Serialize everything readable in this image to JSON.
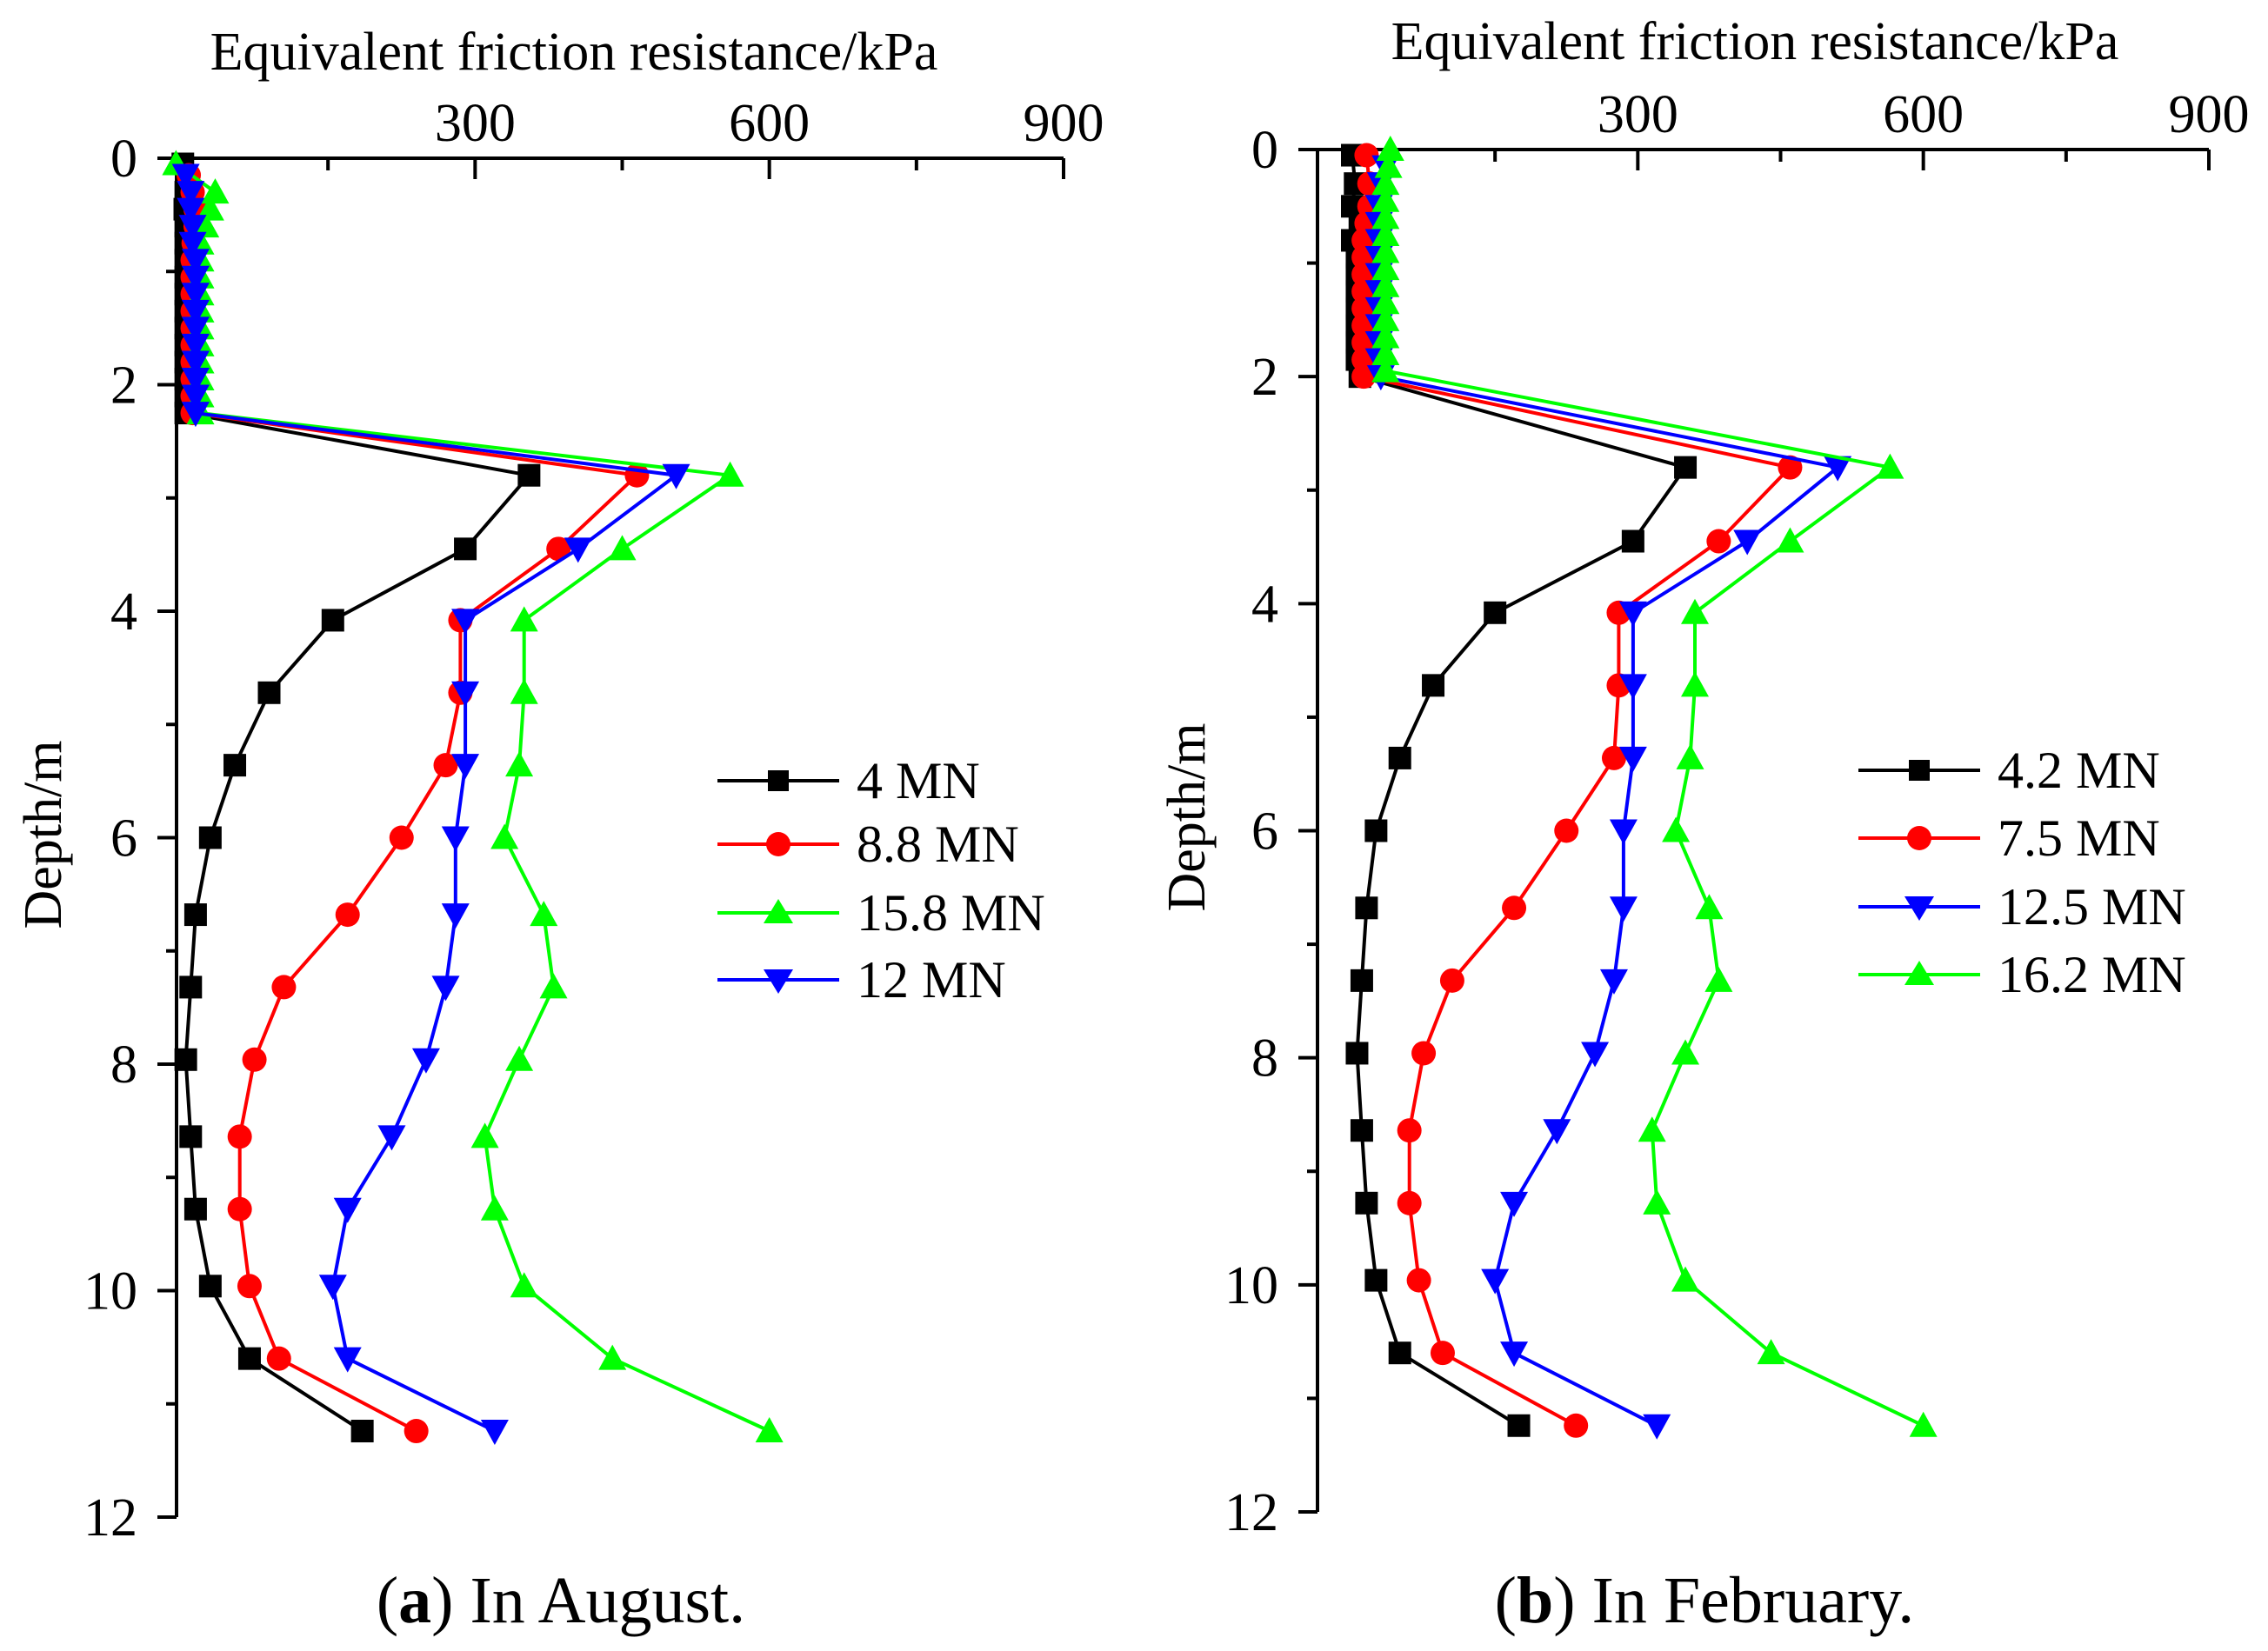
{
  "chart_data": [
    {
      "type": "line",
      "panel_id": "a",
      "caption_letter": "a",
      "caption_text": "In August.",
      "xlabel": "Equivalent friction resistance/kPa",
      "ylabel": "Depth/m",
      "xlim": [
        0,
        900
      ],
      "ylim": [
        0,
        12
      ],
      "xticks": [
        300,
        600,
        900
      ],
      "yticks": [
        0,
        2,
        4,
        6,
        8,
        10,
        12
      ],
      "x_axis_position": "top",
      "y_inverted": true,
      "legend_position": "right-middle",
      "series": [
        {
          "name": "4 MN",
          "color": "#000000",
          "marker": "square",
          "points": [
            [
              2,
              0.05
            ],
            [
              5,
              0.3
            ],
            [
              4,
              0.45
            ],
            [
              5,
              0.6
            ],
            [
              5,
              0.75
            ],
            [
              5,
              0.9
            ],
            [
              5,
              1.05
            ],
            [
              5,
              1.2
            ],
            [
              5,
              1.35
            ],
            [
              5,
              1.5
            ],
            [
              5,
              1.65
            ],
            [
              5,
              1.8
            ],
            [
              5,
              1.95
            ],
            [
              5,
              2.1
            ],
            [
              5,
              2.25
            ],
            [
              355,
              2.8
            ],
            [
              290,
              3.45
            ],
            [
              155,
              4.08
            ],
            [
              90,
              4.72
            ],
            [
              55,
              5.36
            ],
            [
              30,
              6.0
            ],
            [
              15,
              6.68
            ],
            [
              10,
              7.32
            ],
            [
              5,
              7.96
            ],
            [
              10,
              8.64
            ],
            [
              15,
              9.28
            ],
            [
              30,
              9.96
            ],
            [
              70,
              10.6
            ],
            [
              185,
              11.24
            ]
          ]
        },
        {
          "name": "8.8 MN",
          "color": "#ff0000",
          "marker": "circle",
          "points": [
            [
              8,
              0.15
            ],
            [
              12,
              0.3
            ],
            [
              15,
              0.45
            ],
            [
              15,
              0.6
            ],
            [
              13,
              0.75
            ],
            [
              12,
              0.9
            ],
            [
              12,
              1.05
            ],
            [
              12,
              1.2
            ],
            [
              12,
              1.35
            ],
            [
              12,
              1.5
            ],
            [
              12,
              1.65
            ],
            [
              12,
              1.8
            ],
            [
              12,
              1.95
            ],
            [
              12,
              2.1
            ],
            [
              12,
              2.25
            ],
            [
              465,
              2.8
            ],
            [
              385,
              3.45
            ],
            [
              285,
              4.08
            ],
            [
              285,
              4.72
            ],
            [
              270,
              5.36
            ],
            [
              225,
              6.0
            ],
            [
              170,
              6.68
            ],
            [
              105,
              7.32
            ],
            [
              75,
              7.96
            ],
            [
              60,
              8.64
            ],
            [
              60,
              9.28
            ],
            [
              70,
              9.96
            ],
            [
              100,
              10.6
            ],
            [
              240,
              11.24
            ]
          ]
        },
        {
          "name": "15.8 MN",
          "color": "#00ff00",
          "marker": "triangle-up",
          "points": [
            [
              -5,
              0.05
            ],
            [
              35,
              0.3
            ],
            [
              30,
              0.45
            ],
            [
              25,
              0.6
            ],
            [
              20,
              0.75
            ],
            [
              20,
              0.9
            ],
            [
              20,
              1.05
            ],
            [
              20,
              1.2
            ],
            [
              20,
              1.35
            ],
            [
              20,
              1.5
            ],
            [
              20,
              1.65
            ],
            [
              20,
              1.8
            ],
            [
              20,
              1.95
            ],
            [
              20,
              2.1
            ],
            [
              20,
              2.25
            ],
            [
              560,
              2.8
            ],
            [
              450,
              3.45
            ],
            [
              350,
              4.08
            ],
            [
              350,
              4.72
            ],
            [
              345,
              5.36
            ],
            [
              330,
              6.0
            ],
            [
              370,
              6.68
            ],
            [
              380,
              7.32
            ],
            [
              345,
              7.96
            ],
            [
              310,
              8.64
            ],
            [
              320,
              9.28
            ],
            [
              350,
              9.96
            ],
            [
              440,
              10.6
            ],
            [
              600,
              11.24
            ]
          ]
        },
        {
          "name": "12 MN",
          "color": "#0000ff",
          "marker": "triangle-down",
          "points": [
            [
              5,
              0.15
            ],
            [
              10,
              0.3
            ],
            [
              10,
              0.45
            ],
            [
              12,
              0.6
            ],
            [
              12,
              0.75
            ],
            [
              15,
              0.9
            ],
            [
              15,
              1.05
            ],
            [
              15,
              1.2
            ],
            [
              15,
              1.35
            ],
            [
              15,
              1.5
            ],
            [
              15,
              1.65
            ],
            [
              15,
              1.8
            ],
            [
              15,
              1.95
            ],
            [
              15,
              2.1
            ],
            [
              15,
              2.25
            ],
            [
              505,
              2.8
            ],
            [
              405,
              3.45
            ],
            [
              290,
              4.08
            ],
            [
              290,
              4.72
            ],
            [
              290,
              5.36
            ],
            [
              280,
              6.0
            ],
            [
              280,
              6.68
            ],
            [
              270,
              7.32
            ],
            [
              250,
              7.96
            ],
            [
              215,
              8.64
            ],
            [
              170,
              9.28
            ],
            [
              155,
              9.96
            ],
            [
              170,
              10.6
            ],
            [
              320,
              11.24
            ]
          ]
        }
      ]
    },
    {
      "type": "line",
      "panel_id": "b",
      "caption_letter": "b",
      "caption_text": "In February.",
      "xlabel": "Equivalent friction resistance/kPa",
      "ylabel": "Depth/m",
      "xlim": [
        0,
        900
      ],
      "ylim": [
        0,
        12
      ],
      "xticks": [
        300,
        600,
        900
      ],
      "yticks": [
        0,
        2,
        4,
        6,
        8,
        10,
        12
      ],
      "x_axis_position": "top",
      "y_inverted": true,
      "legend_position": "right-middle",
      "series": [
        {
          "name": "4.2 MN",
          "color": "#000000",
          "marker": "square",
          "points": [
            [
              0,
              0.05
            ],
            [
              3,
              0.3
            ],
            [
              0,
              0.5
            ],
            [
              8,
              0.65
            ],
            [
              0,
              0.8
            ],
            [
              5,
              0.95
            ],
            [
              5,
              1.1
            ],
            [
              5,
              1.25
            ],
            [
              5,
              1.4
            ],
            [
              5,
              1.55
            ],
            [
              5,
              1.7
            ],
            [
              5,
              1.85
            ],
            [
              8,
              2.0
            ],
            [
              350,
              2.8
            ],
            [
              295,
              3.45
            ],
            [
              150,
              4.08
            ],
            [
              85,
              4.72
            ],
            [
              50,
              5.36
            ],
            [
              25,
              6.0
            ],
            [
              15,
              6.68
            ],
            [
              10,
              7.32
            ],
            [
              5,
              7.96
            ],
            [
              10,
              8.64
            ],
            [
              15,
              9.28
            ],
            [
              25,
              9.96
            ],
            [
              50,
              10.6
            ],
            [
              175,
              11.24
            ]
          ]
        },
        {
          "name": "7.5 MN",
          "color": "#ff0000",
          "marker": "circle",
          "points": [
            [
              15,
              0.05
            ],
            [
              18,
              0.3
            ],
            [
              18,
              0.5
            ],
            [
              15,
              0.65
            ],
            [
              12,
              0.8
            ],
            [
              12,
              0.95
            ],
            [
              12,
              1.1
            ],
            [
              12,
              1.25
            ],
            [
              12,
              1.4
            ],
            [
              12,
              1.55
            ],
            [
              12,
              1.7
            ],
            [
              12,
              1.85
            ],
            [
              12,
              2.0
            ],
            [
              460,
              2.8
            ],
            [
              385,
              3.45
            ],
            [
              280,
              4.08
            ],
            [
              280,
              4.72
            ],
            [
              275,
              5.36
            ],
            [
              225,
              6.0
            ],
            [
              170,
              6.68
            ],
            [
              105,
              7.32
            ],
            [
              75,
              7.96
            ],
            [
              60,
              8.64
            ],
            [
              60,
              9.28
            ],
            [
              70,
              9.96
            ],
            [
              95,
              10.6
            ],
            [
              235,
              11.24
            ]
          ]
        },
        {
          "name": "12.5 MN",
          "color": "#0000ff",
          "marker": "triangle-down",
          "points": [
            [
              35,
              0.15
            ],
            [
              30,
              0.3
            ],
            [
              28,
              0.5
            ],
            [
              28,
              0.65
            ],
            [
              28,
              0.8
            ],
            [
              28,
              0.95
            ],
            [
              28,
              1.1
            ],
            [
              28,
              1.25
            ],
            [
              28,
              1.4
            ],
            [
              28,
              1.55
            ],
            [
              28,
              1.7
            ],
            [
              28,
              1.85
            ],
            [
              30,
              2.0
            ],
            [
              510,
              2.8
            ],
            [
              415,
              3.45
            ],
            [
              295,
              4.08
            ],
            [
              295,
              4.72
            ],
            [
              295,
              5.36
            ],
            [
              285,
              6.0
            ],
            [
              285,
              6.68
            ],
            [
              275,
              7.32
            ],
            [
              255,
              7.96
            ],
            [
              215,
              8.64
            ],
            [
              170,
              9.28
            ],
            [
              150,
              9.96
            ],
            [
              170,
              10.6
            ],
            [
              320,
              11.24
            ]
          ]
        },
        {
          "name": "16.2 MN",
          "color": "#00ff00",
          "marker": "triangle-up",
          "points": [
            [
              40,
              0.0
            ],
            [
              38,
              0.15
            ],
            [
              35,
              0.3
            ],
            [
              35,
              0.45
            ],
            [
              35,
              0.6
            ],
            [
              35,
              0.75
            ],
            [
              35,
              0.9
            ],
            [
              35,
              1.05
            ],
            [
              35,
              1.2
            ],
            [
              35,
              1.35
            ],
            [
              35,
              1.5
            ],
            [
              35,
              1.65
            ],
            [
              35,
              1.8
            ],
            [
              35,
              1.95
            ],
            [
              565,
              2.8
            ],
            [
              460,
              3.45
            ],
            [
              360,
              4.08
            ],
            [
              360,
              4.72
            ],
            [
              355,
              5.36
            ],
            [
              340,
              6.0
            ],
            [
              375,
              6.68
            ],
            [
              385,
              7.32
            ],
            [
              350,
              7.96
            ],
            [
              315,
              8.64
            ],
            [
              320,
              9.28
            ],
            [
              350,
              9.96
            ],
            [
              440,
              10.6
            ],
            [
              600,
              11.24
            ]
          ]
        }
      ]
    }
  ]
}
